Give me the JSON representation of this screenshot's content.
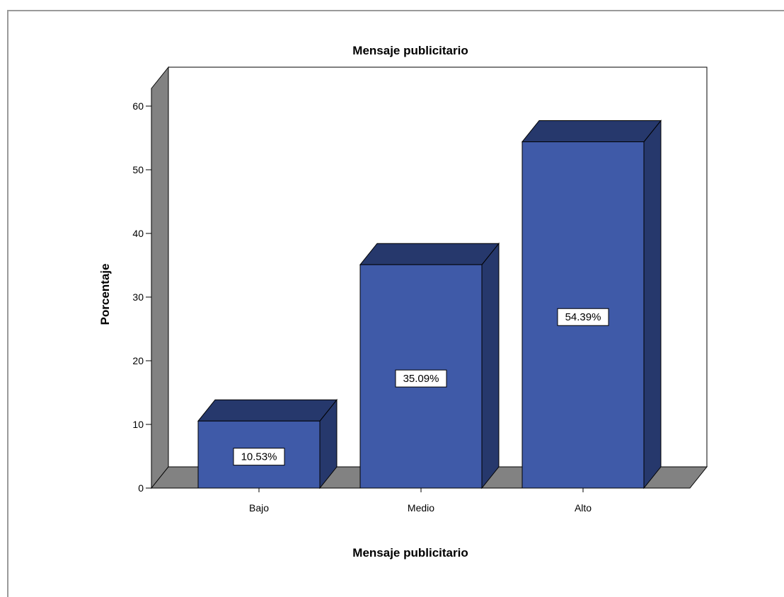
{
  "chart_data": {
    "type": "bar",
    "title": "Mensaje publicitario",
    "xlabel": "Mensaje publicitario",
    "ylabel": "Porcentaje",
    "categories": [
      "Bajo",
      "Medio",
      "Alto"
    ],
    "values": [
      10.53,
      35.09,
      54.39
    ],
    "data_labels": [
      "10.53%",
      "35.09%",
      "54.39%"
    ],
    "y_ticks": [
      0,
      10,
      20,
      30,
      40,
      50,
      60
    ],
    "ylim": [
      0,
      60
    ],
    "grid": false,
    "legend": "none",
    "three_d": true,
    "colors": {
      "bar_front": "#3f5aa8",
      "bar_top": "#26386c",
      "bar_side": "#26386c",
      "floor": "#828282",
      "wall": "#828282",
      "edge": "#000000"
    }
  }
}
